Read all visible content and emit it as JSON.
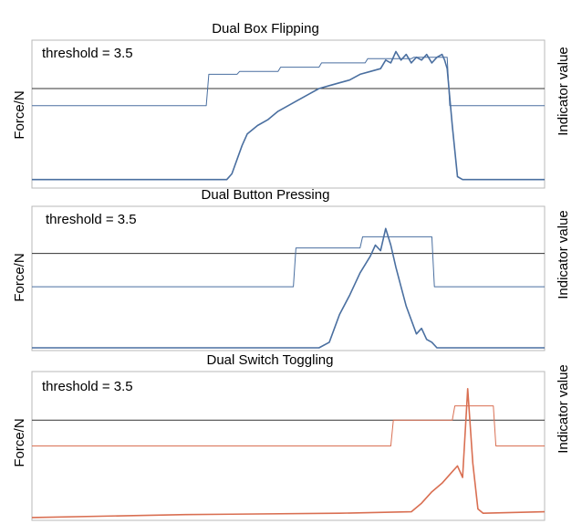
{
  "chart_data": [
    {
      "type": "line",
      "title": "Dual Box Flipping",
      "ylabel_left": "Force/N",
      "ylabel_right": "Indicator value",
      "threshold_label": "threshold = 3.5",
      "threshold": 3.5,
      "ylim": [
        0,
        5.2
      ],
      "xlim": [
        0,
        100
      ],
      "grid": false,
      "color": "#4a6fa0",
      "series": [
        {
          "role": "indicator",
          "x": [
            0,
            12,
            34,
            34.5,
            40,
            40.5,
            48,
            48.5,
            56,
            56.5,
            65,
            65.5,
            74,
            74.5,
            81,
            81.5,
            85,
            100
          ],
          "values": [
            2.9,
            2.9,
            2.9,
            4.0,
            4.0,
            4.1,
            4.1,
            4.25,
            4.25,
            4.4,
            4.4,
            4.55,
            4.55,
            4.6,
            4.6,
            2.9,
            2.9,
            2.9
          ]
        },
        {
          "role": "force",
          "x": [
            0,
            20,
            38,
            39,
            40,
            41,
            42,
            44,
            46,
            48,
            50,
            52,
            54,
            56,
            58,
            60,
            62,
            64,
            66,
            68,
            69,
            70,
            71,
            72,
            73,
            74,
            75,
            76,
            77,
            78,
            79,
            80,
            80.5,
            81,
            82,
            83,
            84,
            100
          ],
          "values": [
            0.3,
            0.3,
            0.3,
            0.5,
            1.0,
            1.5,
            1.9,
            2.2,
            2.4,
            2.7,
            2.9,
            3.1,
            3.3,
            3.5,
            3.6,
            3.7,
            3.8,
            4.0,
            4.1,
            4.2,
            4.5,
            4.4,
            4.8,
            4.5,
            4.7,
            4.4,
            4.6,
            4.5,
            4.7,
            4.4,
            4.6,
            4.7,
            4.5,
            4.2,
            2.2,
            0.4,
            0.3,
            0.3
          ]
        }
      ]
    },
    {
      "type": "line",
      "title": "Dual Button Pressing",
      "ylabel_left": "Force/N",
      "ylabel_right": "Indicator value",
      "threshold_label": "threshold = 3.5",
      "threshold": 3.5,
      "ylim": [
        0,
        5.2
      ],
      "xlim": [
        0,
        100
      ],
      "grid": false,
      "color": "#4a6fa0",
      "series": [
        {
          "role": "indicator",
          "x": [
            0,
            15,
            51,
            51.5,
            64,
            64.5,
            78,
            78.5,
            100
          ],
          "values": [
            2.3,
            2.3,
            2.3,
            3.7,
            3.7,
            4.1,
            4.1,
            2.3,
            2.3
          ]
        },
        {
          "role": "force",
          "x": [
            0,
            30,
            56,
            58,
            59,
            60,
            62,
            64,
            66,
            67,
            68,
            69,
            70,
            71,
            72,
            73,
            74,
            75,
            76,
            77,
            78,
            79,
            80,
            100
          ],
          "values": [
            0.1,
            0.1,
            0.1,
            0.3,
            0.8,
            1.3,
            2.0,
            2.8,
            3.4,
            3.8,
            3.6,
            4.4,
            3.8,
            3.0,
            2.3,
            1.6,
            1.1,
            0.6,
            0.8,
            0.4,
            0.3,
            0.1,
            0.1,
            0.1
          ]
        }
      ]
    },
    {
      "type": "line",
      "title": "Dual Switch Toggling",
      "ylabel_left": "Force/N",
      "ylabel_right": "Indicator value",
      "threshold_label": "threshold = 3.5",
      "threshold": 3.5,
      "ylim": [
        0,
        5.2
      ],
      "xlim": [
        0,
        100
      ],
      "grid": false,
      "color": "#d96f52",
      "series": [
        {
          "role": "indicator",
          "x": [
            0,
            30,
            70,
            70.5,
            82,
            82.5,
            90,
            90.5,
            100
          ],
          "values": [
            2.6,
            2.6,
            2.6,
            3.5,
            3.5,
            4.0,
            4.0,
            2.6,
            2.6
          ]
        },
        {
          "role": "force",
          "x": [
            0,
            30,
            60,
            74,
            76,
            78,
            80,
            82,
            83,
            84,
            85,
            86,
            87,
            88,
            100
          ],
          "values": [
            0.1,
            0.2,
            0.25,
            0.3,
            0.6,
            1.0,
            1.3,
            1.7,
            1.9,
            1.5,
            4.6,
            2.0,
            0.4,
            0.25,
            0.3
          ]
        }
      ]
    }
  ]
}
